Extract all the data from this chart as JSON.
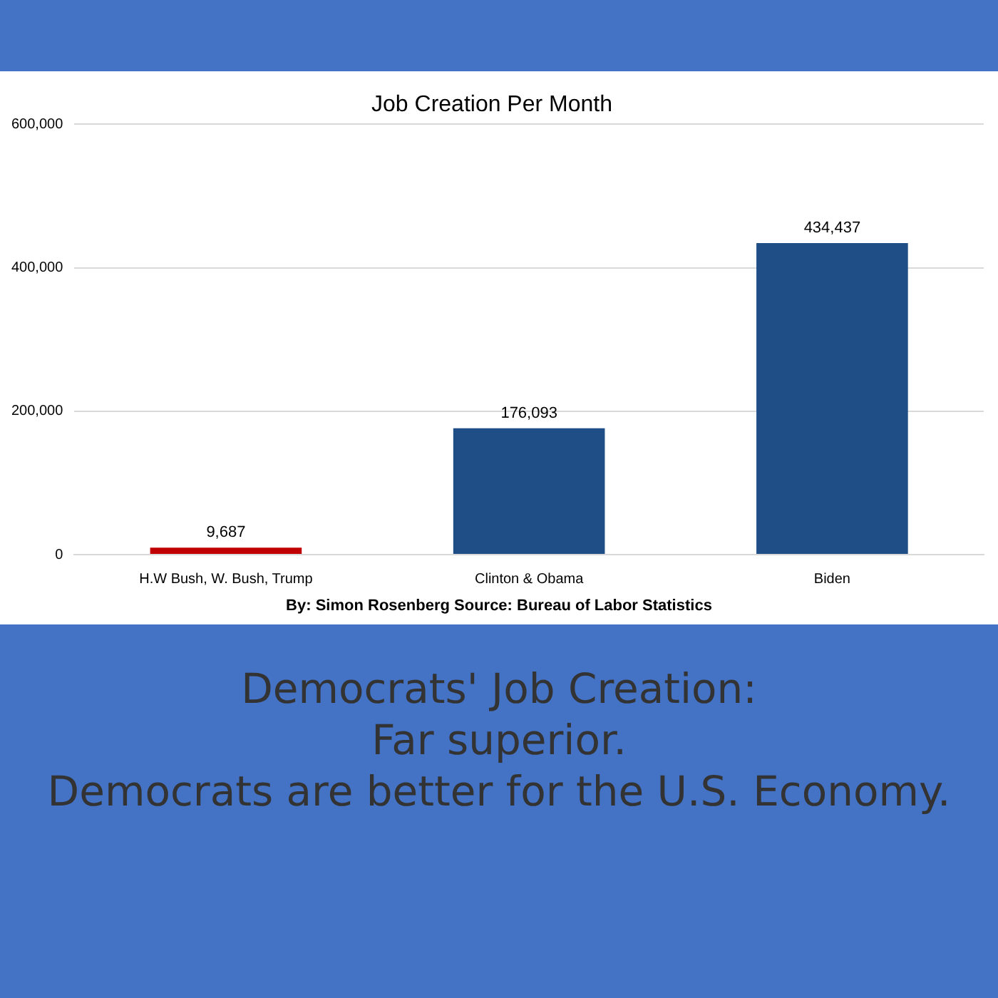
{
  "chart_data": {
    "type": "bar",
    "title": "Job Creation Per Month",
    "categories": [
      "H.W Bush, W. Bush, Trump",
      "Clinton & Obama",
      "Biden"
    ],
    "values": [
      9687,
      176093,
      434437
    ],
    "colors": [
      "#c00000",
      "#1f4e87",
      "#1f4e87"
    ],
    "ylim": [
      0,
      600000
    ],
    "yticks": [
      {
        "value": 0,
        "label": "0"
      },
      {
        "value": 200000,
        "label": "200,000"
      },
      {
        "value": 400000,
        "label": "400,000"
      },
      {
        "value": 600000,
        "label": "600,000"
      }
    ],
    "value_labels": [
      "9,687",
      "176,093",
      "434,437"
    ],
    "grid": "y",
    "annotations": [
      "By: Simon Rosenberg Source: Bureau of Labor Statistics",
      "Democrats' Job Creation:",
      "Far superior.",
      "Democrats are better for the U.S. Economy."
    ]
  }
}
